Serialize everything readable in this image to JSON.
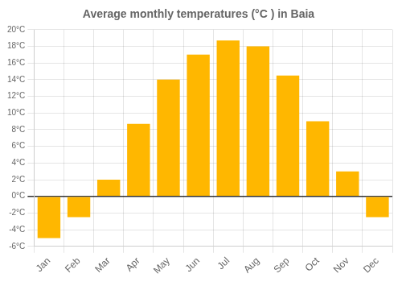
{
  "chart_data": {
    "type": "bar",
    "title": "Average monthly temperatures (°C ) in Baia",
    "categories": [
      "Jan",
      "Feb",
      "Mar",
      "Apr",
      "May",
      "Jun",
      "Jul",
      "Aug",
      "Sep",
      "Oct",
      "Nov",
      "Dec"
    ],
    "values": [
      -5.0,
      -2.5,
      2.0,
      8.7,
      14.0,
      17.0,
      18.7,
      18.0,
      14.5,
      9.0,
      3.0,
      -2.5
    ],
    "color": "#FFB700",
    "ylim": [
      -6,
      20
    ],
    "yticks": [
      {
        "value": -6,
        "label": "-6°C"
      },
      {
        "value": -4,
        "label": "-4°C"
      },
      {
        "value": -2,
        "label": "-2°C"
      },
      {
        "value": 0,
        "label": "0°C"
      },
      {
        "value": 2,
        "label": "2°C"
      },
      {
        "value": 4,
        "label": "4°C"
      },
      {
        "value": 6,
        "label": "6°C"
      },
      {
        "value": 8,
        "label": "8°C"
      },
      {
        "value": 10,
        "label": "10°C"
      },
      {
        "value": 12,
        "label": "12°C"
      },
      {
        "value": 14,
        "label": "14°C"
      },
      {
        "value": 16,
        "label": "16°C"
      },
      {
        "value": 18,
        "label": "18°C"
      },
      {
        "value": 20,
        "label": "20°C"
      }
    ],
    "grid": true
  }
}
